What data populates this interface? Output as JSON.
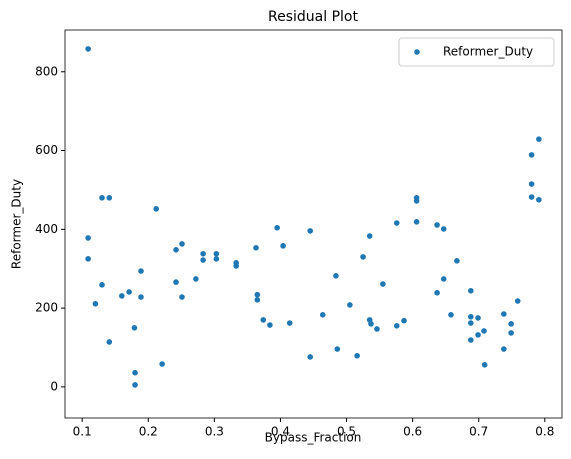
{
  "chart_data": {
    "type": "scatter",
    "title": "Residual Plot",
    "x_label": "Bypass_Fraction",
    "y_label": "Reformer_Duty",
    "x": [
      0.109,
      0.109,
      0.109,
      0.12,
      0.13,
      0.13,
      0.141,
      0.141,
      0.16,
      0.171,
      0.179,
      0.18,
      0.18,
      0.189,
      0.189,
      0.212,
      0.221,
      0.242,
      0.242,
      0.251,
      0.251,
      0.272,
      0.283,
      0.283,
      0.303,
      0.303,
      0.333,
      0.333,
      0.363,
      0.365,
      0.365,
      0.374,
      0.384,
      0.395,
      0.404,
      0.414,
      0.445,
      0.445,
      0.464,
      0.484,
      0.486,
      0.505,
      0.516,
      0.525,
      0.535,
      0.535,
      0.537,
      0.546,
      0.555,
      0.576,
      0.576,
      0.587,
      0.606,
      0.606,
      0.606,
      0.637,
      0.637,
      0.647,
      0.647,
      0.658,
      0.667,
      0.688,
      0.688,
      0.688,
      0.688,
      0.699,
      0.699,
      0.708,
      0.709,
      0.738,
      0.738,
      0.749,
      0.749,
      0.759,
      0.78,
      0.78,
      0.78,
      0.791,
      0.791
    ],
    "series": [
      {
        "name": "Reformer_Duty",
        "color": "#1f77b4",
        "values": [
          858,
          378,
          325,
          211,
          480,
          259,
          480,
          114,
          231,
          241,
          150,
          36,
          5,
          294,
          228,
          452,
          58,
          348,
          266,
          363,
          228,
          274,
          338,
          322,
          338,
          325,
          315,
          307,
          353,
          234,
          221,
          170,
          157,
          404,
          358,
          162,
          396,
          76,
          183,
          282,
          96,
          208,
          79,
          330,
          383,
          170,
          160,
          147,
          261,
          416,
          155,
          168,
          480,
          472,
          419,
          411,
          239,
          401,
          274,
          183,
          320,
          244,
          178,
          162,
          119,
          175,
          132,
          142,
          56,
          185,
          96,
          160,
          137,
          218,
          589,
          515,
          482,
          629,
          475
        ]
      }
    ],
    "xlim": [
      0.074,
      0.826
    ],
    "xticks": [
      0.1,
      0.2,
      0.3,
      0.4,
      0.5,
      0.6,
      0.7,
      0.8
    ],
    "ylim": [
      -79,
      906
    ],
    "yticks": [
      0,
      200,
      400,
      600,
      800
    ],
    "legend": "upper right"
  }
}
